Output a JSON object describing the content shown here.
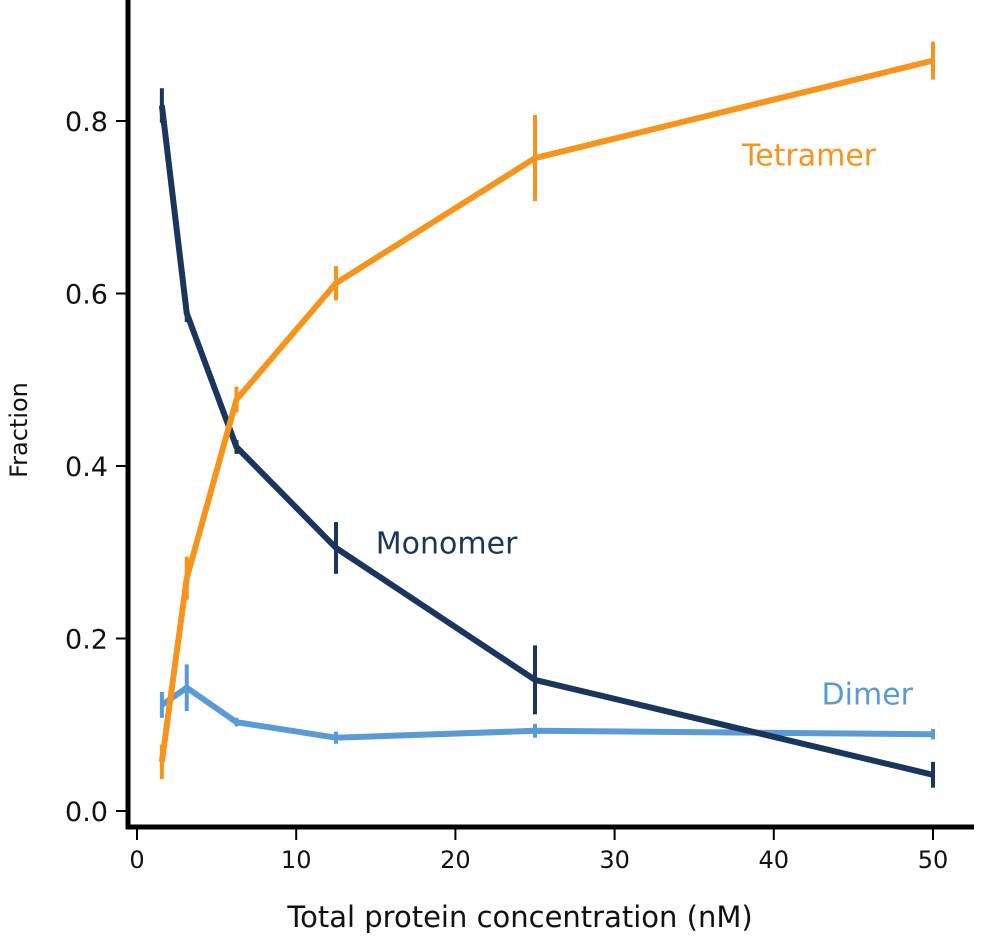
{
  "chart_data": {
    "type": "line",
    "title": "",
    "xlabel": "Total protein concentration (nM)",
    "ylabel": "Fraction",
    "xlim": [
      -0.6,
      52.4
    ],
    "ylim": [
      0,
      0.94
    ],
    "x_ticks": [
      0,
      10,
      20,
      30,
      40,
      50
    ],
    "x_tick_labels": [
      "0",
      "10",
      "20",
      "30",
      "40",
      "50"
    ],
    "y_ticks": [
      0,
      0.2,
      0.4,
      0.6,
      0.8
    ],
    "y_tick_labels": [
      "0.0",
      "0.2",
      "0.4",
      "0.6",
      "0.8"
    ],
    "grid": false,
    "legend": "inline labels",
    "x": [
      1.5625,
      3.125,
      6.25,
      12.5,
      25,
      50
    ],
    "series": [
      {
        "name": "Monomer",
        "color": "#1b365d",
        "values": [
          0.818,
          0.577,
          0.422,
          0.305,
          0.152,
          0.042
        ],
        "errors": [
          0.02,
          0.01,
          0.008,
          0.03,
          0.04,
          0.015
        ],
        "label_at": [
          15,
          0.31
        ]
      },
      {
        "name": "Tetramer",
        "color": "#f7941d",
        "values": [
          0.057,
          0.27,
          0.477,
          0.612,
          0.757,
          0.87
        ],
        "errors": [
          0.02,
          0.025,
          0.015,
          0.02,
          0.05,
          0.022
        ],
        "label_at": [
          38,
          0.76
        ]
      },
      {
        "name": "Dimer",
        "color": "#5b9bd5",
        "values": [
          0.123,
          0.143,
          0.103,
          0.085,
          0.093,
          0.089
        ],
        "errors": [
          0.015,
          0.027,
          0.005,
          0.007,
          0.008,
          0.006
        ],
        "label_at": [
          43,
          0.135
        ]
      }
    ]
  }
}
